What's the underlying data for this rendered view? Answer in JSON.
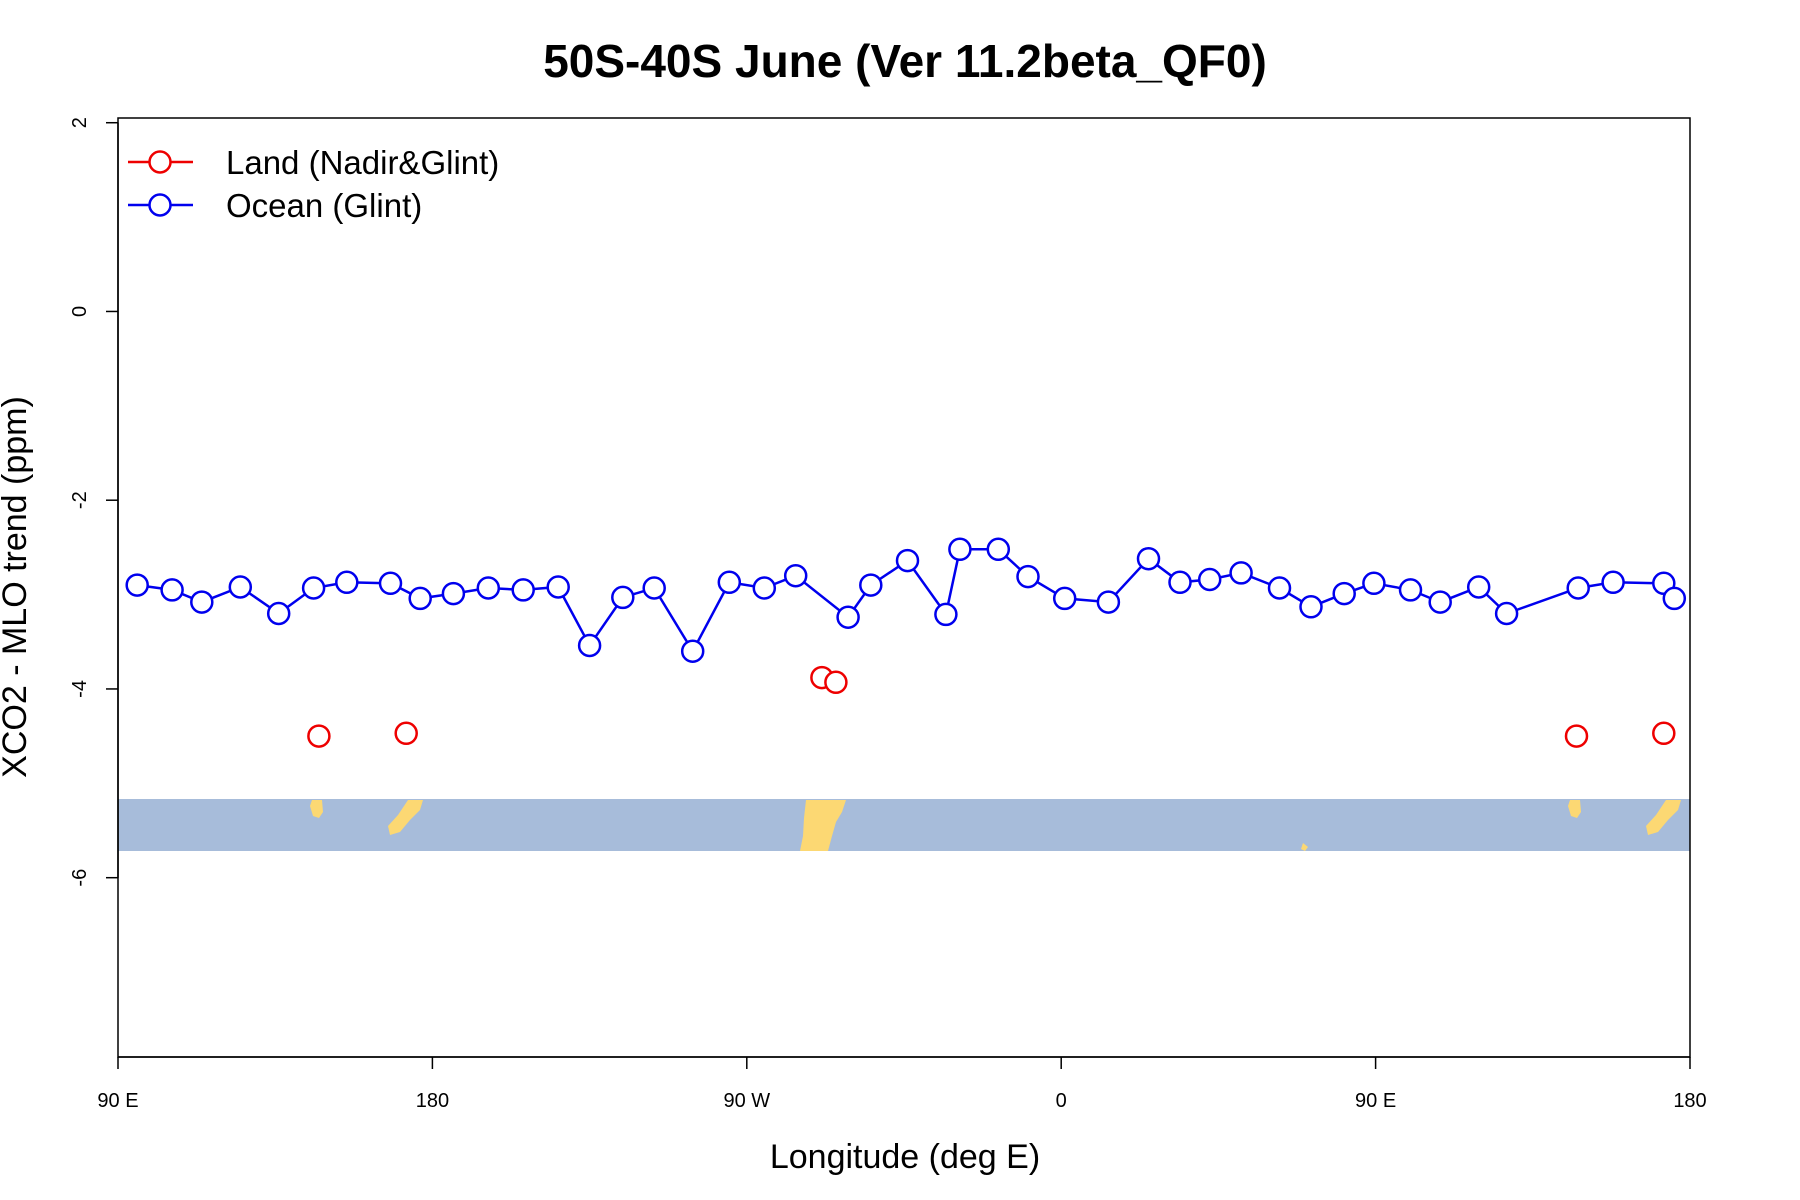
{
  "chart_data": {
    "type": "line",
    "title": "50S-40S June (Ver 11.2beta_QF0)",
    "xlabel": "Longitude (deg E)",
    "ylabel": "XCO2 - MLO trend (ppm)",
    "xlim": [
      90,
      540
    ],
    "ylim": [
      -7.9,
      2.05
    ],
    "x_ticks": [
      {
        "value": 90,
        "label": "90 E"
      },
      {
        "value": 180,
        "label": "180"
      },
      {
        "value": 270,
        "label": "90 W"
      },
      {
        "value": 360,
        "label": "0"
      },
      {
        "value": 450,
        "label": "90 E"
      },
      {
        "value": 540,
        "label": "180"
      }
    ],
    "y_ticks": [
      {
        "value": 2,
        "label": "2"
      },
      {
        "value": 0,
        "label": "0"
      },
      {
        "value": -2,
        "label": "-2"
      },
      {
        "value": -4,
        "label": "-4"
      },
      {
        "value": -6,
        "label": "-6"
      }
    ],
    "grid": false,
    "legend_position": "top-left",
    "series": [
      {
        "name": "Land (Nadir&Glint)",
        "color": "#ee0000",
        "lines": false,
        "x": [
          147.5,
          172.5,
          291.5,
          295.5,
          507.5,
          532.5
        ],
        "y": [
          -4.5,
          -4.47,
          -3.88,
          -3.93,
          -4.5,
          -4.47
        ]
      },
      {
        "name": "Ocean (Glint)",
        "color": "#0000ee",
        "lines": true,
        "x": [
          95.5,
          105.5,
          114,
          125,
          136,
          146,
          155.5,
          168,
          176.5,
          186,
          196,
          206,
          216,
          225,
          234.5,
          243.5,
          254.5,
          265,
          275,
          284,
          299,
          305.5,
          316,
          327,
          331,
          342,
          350.5,
          361,
          373.5,
          385,
          394,
          402.5,
          411.5,
          422.5,
          431.5,
          441,
          449.5,
          460,
          468.5,
          479.5,
          487.5,
          508,
          518,
          532.5,
          535.5
        ],
        "y": [
          -2.9,
          -2.95,
          -3.08,
          -2.92,
          -3.2,
          -2.93,
          -2.87,
          -2.88,
          -3.04,
          -2.99,
          -2.93,
          -2.95,
          -2.92,
          -3.54,
          -3.03,
          -2.93,
          -3.6,
          -2.87,
          -2.93,
          -2.8,
          -3.24,
          -2.9,
          -2.64,
          -3.21,
          -2.52,
          -2.52,
          -2.81,
          -3.04,
          -3.08,
          -2.62,
          -2.87,
          -2.84,
          -2.77,
          -2.93,
          -3.13,
          -2.99,
          -2.88,
          -2.95,
          -3.08,
          -2.92,
          -3.2,
          -2.93,
          -2.87,
          -2.88,
          -3.04
        ]
      }
    ],
    "map_strip": {
      "ocean_color": "#a7bcda",
      "land_color": "#fcd873"
    }
  }
}
